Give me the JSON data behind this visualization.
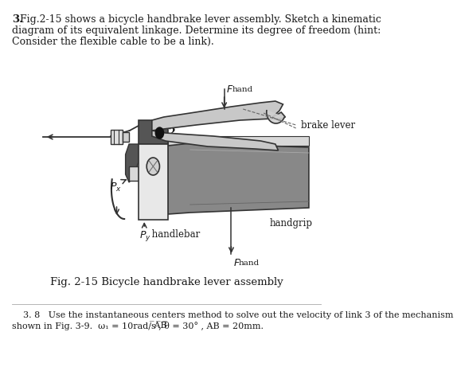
{
  "bg_color": "#ffffff",
  "text_color": "#1a1a1a",
  "gray_dark": "#444444",
  "gray_mid": "#888888",
  "gray_light": "#cccccc",
  "gray_handgrip": "#888888",
  "gray_lever": "#c8c8c8",
  "line_color": "#333333",
  "question_line1": "3. Fig.2-15 shows a bicycle handbrake lever assembly. Sketch a kinematic",
  "question_line2": "diagram of its equivalent linkage. Determine its degree of freedom (hint:",
  "question_line3": "Consider the flexible cable to be a link).",
  "fig_caption": "Fig. 2-15 Bicycle handbrake lever assembly",
  "bottom_line1": "    3. 8   Use the instantaneous centers method to solve out the velocity of link 3 of the mechanism",
  "bottom_line2": "shown in Fig. 3-9.  ω₁ = 10rad/s , θ = 30° , AB = 20mm."
}
